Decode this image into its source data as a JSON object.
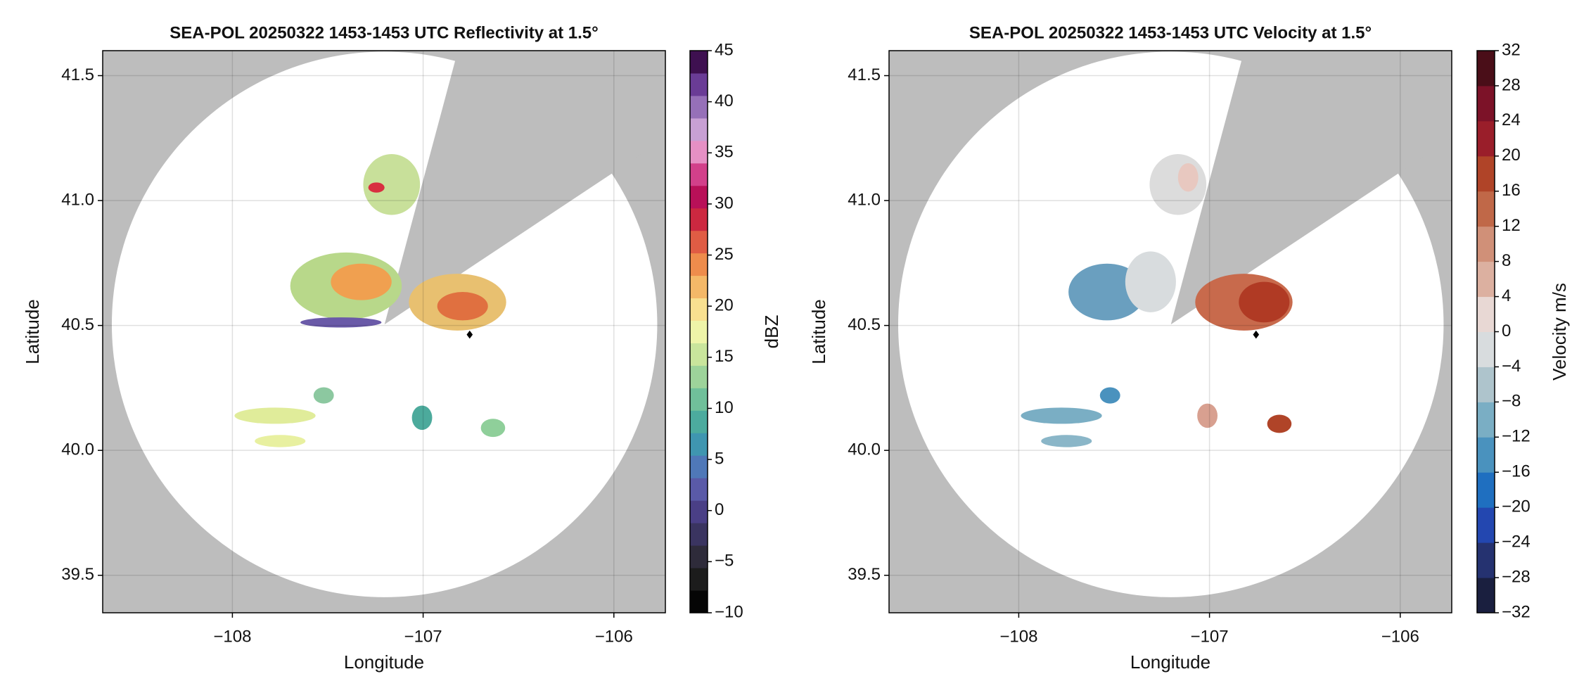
{
  "chart_data": [
    {
      "type": "radar",
      "title": "SEA-POL 20250322 1453-1453 UTC Reflectivity at 1.5°",
      "x_label": "Longitude",
      "y_label": "Latitude",
      "xlim": [
        -108.68,
        -105.73
      ],
      "ylim": [
        39.35,
        41.6
      ],
      "xticks": [
        {
          "value": -108,
          "label": "−108"
        },
        {
          "value": -107,
          "label": "−107"
        },
        {
          "value": -106,
          "label": "−106"
        }
      ],
      "yticks": [
        39.5,
        {
          "value": 40,
          "label": "40.0"
        },
        40.5,
        {
          "value": 41,
          "label": "41.0"
        },
        41.5
      ],
      "grid": true,
      "colorbar": {
        "label": "dBZ",
        "lim": [
          -10,
          45
        ],
        "ticks": [
          {
            "value": -10,
            "label": "−10"
          },
          {
            "value": -5,
            "label": "−5"
          },
          0,
          5,
          10,
          15,
          20,
          25,
          30,
          35,
          40,
          45
        ],
        "colors": [
          "#050505",
          "#1c1c1c",
          "#2e2b3a",
          "#3a3460",
          "#4a3f86",
          "#5a5aa8",
          "#4f78b8",
          "#3f96b0",
          "#4cab9e",
          "#70c09a",
          "#9dd39a",
          "#c9e59c",
          "#eef4a8",
          "#f8e090",
          "#f4b868",
          "#ee8c4c",
          "#e05c44",
          "#cc2840",
          "#b81058",
          "#d2408a",
          "#e690c4",
          "#c8a0d4",
          "#9670b8",
          "#6a3c96",
          "#3e1050"
        ]
      }
    },
    {
      "type": "radar",
      "title": "SEA-POL 20250322 1453-1453 UTC Velocity at 1.5°",
      "x_label": "Longitude",
      "y_label": "Latitude",
      "xlim": [
        -108.68,
        -105.73
      ],
      "ylim": [
        39.35,
        41.6
      ],
      "xticks": [
        {
          "value": -108,
          "label": "−108"
        },
        {
          "value": -107,
          "label": "−107"
        },
        {
          "value": -106,
          "label": "−106"
        }
      ],
      "yticks": [
        39.5,
        {
          "value": 40,
          "label": "40.0"
        },
        40.5,
        {
          "value": 41,
          "label": "41.0"
        },
        41.5
      ],
      "grid": true,
      "colorbar": {
        "label": "Velocity m/s",
        "lim": [
          -32,
          32
        ],
        "ticks": [
          {
            "value": -32,
            "label": "−32"
          },
          {
            "value": -28,
            "label": "−28"
          },
          {
            "value": -24,
            "label": "−24"
          },
          {
            "value": -20,
            "label": "−20"
          },
          {
            "value": -16,
            "label": "−16"
          },
          {
            "value": -12,
            "label": "−12"
          },
          {
            "value": -8,
            "label": "−8"
          },
          {
            "value": -4,
            "label": "−4"
          },
          0,
          4,
          8,
          12,
          16,
          20,
          24,
          28,
          32
        ],
        "colors": [
          "#1a1f3f",
          "#253270",
          "#2347b0",
          "#1f6fc0",
          "#4a92be",
          "#7aaec4",
          "#aec4cc",
          "#d8dcde",
          "#e8d8d4",
          "#dcb0a0",
          "#d09078",
          "#c06848",
          "#b04428",
          "#9a1e2a",
          "#7c1228",
          "#4a0e18"
        ]
      }
    }
  ]
}
